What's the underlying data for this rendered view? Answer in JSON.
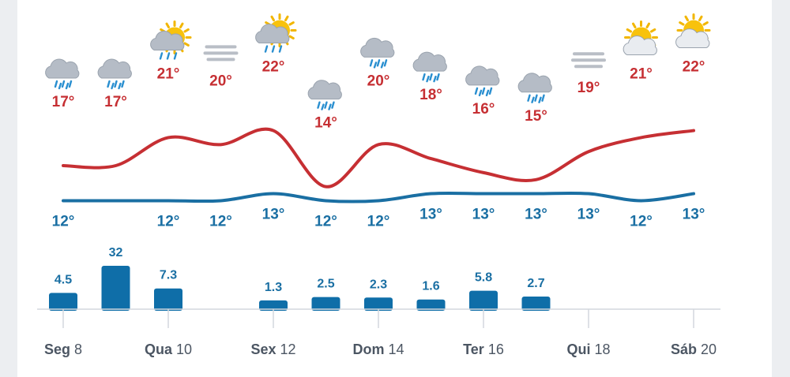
{
  "chart_data": {
    "type": "line",
    "days": [
      {
        "name": "Seg",
        "num": "8"
      },
      {
        "name": "Qua",
        "num": "10"
      },
      {
        "name": "Sex",
        "num": "12"
      },
      {
        "name": "Dom",
        "num": "14"
      },
      {
        "name": "Ter",
        "num": "16"
      },
      {
        "name": "Qui",
        "num": "18"
      },
      {
        "name": "Sáb",
        "num": "20"
      }
    ],
    "series": [
      {
        "name": "max",
        "values": [
          17,
          17,
          21,
          20,
          22,
          14,
          20,
          18,
          16,
          15,
          19,
          21,
          22
        ],
        "labels": [
          "17°",
          "17°",
          "21°",
          "20°",
          "22°",
          "14°",
          "20°",
          "18°",
          "16°",
          "15°",
          "19°",
          "21°",
          "22°"
        ],
        "color": "#c62f33"
      },
      {
        "name": "min",
        "values": [
          12,
          12,
          12,
          12,
          13,
          12,
          12,
          13,
          13,
          13,
          13,
          12,
          13
        ],
        "labels": [
          "12°",
          "",
          "12°",
          "12°",
          "13°",
          "12°",
          "12°",
          "13°",
          "13°",
          "13°",
          "13°",
          "12°",
          "13°"
        ],
        "color": "#1a6fa3"
      }
    ],
    "precipitation": {
      "values": [
        4.5,
        32,
        7.3,
        0,
        1.3,
        2.5,
        2.3,
        1.6,
        5.8,
        2.7,
        0,
        0,
        0
      ],
      "labels": [
        "4.5",
        "32",
        "7.3",
        "",
        "1.3",
        "2.5",
        "2.3",
        "1.6",
        "5.8",
        "2.7",
        "",
        "",
        ""
      ],
      "color": "#0f6ea8"
    },
    "icons": [
      "rain-cloud-icon",
      "rain-cloud-icon",
      "sun-rain-cloud-icon",
      "fog-icon",
      "sun-rain-cloud-icon",
      "rain-cloud-icon",
      "rain-cloud-icon",
      "rain-cloud-icon",
      "rain-cloud-icon",
      "rain-cloud-icon",
      "fog-icon",
      "sun-cloud-icon",
      "sun-cloud-icon"
    ]
  }
}
